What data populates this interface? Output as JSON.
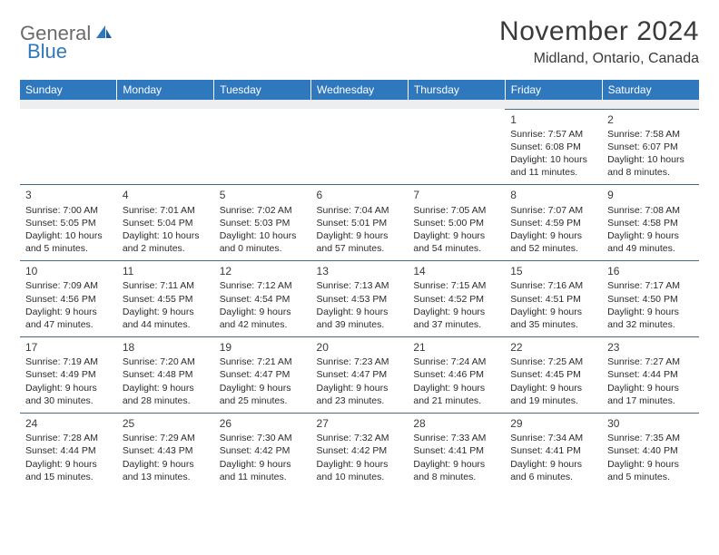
{
  "logo": {
    "text1": "General",
    "text2": "Blue"
  },
  "header": {
    "title": "November 2024",
    "location": "Midland, Ontario, Canada"
  },
  "colors": {
    "brand": "#2f78bd",
    "header_bg": "#2f78bd",
    "header_text": "#ffffff",
    "spacer_bg": "#eceef0",
    "cell_border": "#4a6a8a"
  },
  "weekdays": [
    "Sunday",
    "Monday",
    "Tuesday",
    "Wednesday",
    "Thursday",
    "Friday",
    "Saturday"
  ],
  "weeks": [
    [
      null,
      null,
      null,
      null,
      null,
      {
        "n": "1",
        "sunrise": "7:57 AM",
        "sunset": "6:08 PM",
        "daylight": "10 hours and 11 minutes."
      },
      {
        "n": "2",
        "sunrise": "7:58 AM",
        "sunset": "6:07 PM",
        "daylight": "10 hours and 8 minutes."
      }
    ],
    [
      {
        "n": "3",
        "sunrise": "7:00 AM",
        "sunset": "5:05 PM",
        "daylight": "10 hours and 5 minutes."
      },
      {
        "n": "4",
        "sunrise": "7:01 AM",
        "sunset": "5:04 PM",
        "daylight": "10 hours and 2 minutes."
      },
      {
        "n": "5",
        "sunrise": "7:02 AM",
        "sunset": "5:03 PM",
        "daylight": "10 hours and 0 minutes."
      },
      {
        "n": "6",
        "sunrise": "7:04 AM",
        "sunset": "5:01 PM",
        "daylight": "9 hours and 57 minutes."
      },
      {
        "n": "7",
        "sunrise": "7:05 AM",
        "sunset": "5:00 PM",
        "daylight": "9 hours and 54 minutes."
      },
      {
        "n": "8",
        "sunrise": "7:07 AM",
        "sunset": "4:59 PM",
        "daylight": "9 hours and 52 minutes."
      },
      {
        "n": "9",
        "sunrise": "7:08 AM",
        "sunset": "4:58 PM",
        "daylight": "9 hours and 49 minutes."
      }
    ],
    [
      {
        "n": "10",
        "sunrise": "7:09 AM",
        "sunset": "4:56 PM",
        "daylight": "9 hours and 47 minutes."
      },
      {
        "n": "11",
        "sunrise": "7:11 AM",
        "sunset": "4:55 PM",
        "daylight": "9 hours and 44 minutes."
      },
      {
        "n": "12",
        "sunrise": "7:12 AM",
        "sunset": "4:54 PM",
        "daylight": "9 hours and 42 minutes."
      },
      {
        "n": "13",
        "sunrise": "7:13 AM",
        "sunset": "4:53 PM",
        "daylight": "9 hours and 39 minutes."
      },
      {
        "n": "14",
        "sunrise": "7:15 AM",
        "sunset": "4:52 PM",
        "daylight": "9 hours and 37 minutes."
      },
      {
        "n": "15",
        "sunrise": "7:16 AM",
        "sunset": "4:51 PM",
        "daylight": "9 hours and 35 minutes."
      },
      {
        "n": "16",
        "sunrise": "7:17 AM",
        "sunset": "4:50 PM",
        "daylight": "9 hours and 32 minutes."
      }
    ],
    [
      {
        "n": "17",
        "sunrise": "7:19 AM",
        "sunset": "4:49 PM",
        "daylight": "9 hours and 30 minutes."
      },
      {
        "n": "18",
        "sunrise": "7:20 AM",
        "sunset": "4:48 PM",
        "daylight": "9 hours and 28 minutes."
      },
      {
        "n": "19",
        "sunrise": "7:21 AM",
        "sunset": "4:47 PM",
        "daylight": "9 hours and 25 minutes."
      },
      {
        "n": "20",
        "sunrise": "7:23 AM",
        "sunset": "4:47 PM",
        "daylight": "9 hours and 23 minutes."
      },
      {
        "n": "21",
        "sunrise": "7:24 AM",
        "sunset": "4:46 PM",
        "daylight": "9 hours and 21 minutes."
      },
      {
        "n": "22",
        "sunrise": "7:25 AM",
        "sunset": "4:45 PM",
        "daylight": "9 hours and 19 minutes."
      },
      {
        "n": "23",
        "sunrise": "7:27 AM",
        "sunset": "4:44 PM",
        "daylight": "9 hours and 17 minutes."
      }
    ],
    [
      {
        "n": "24",
        "sunrise": "7:28 AM",
        "sunset": "4:44 PM",
        "daylight": "9 hours and 15 minutes."
      },
      {
        "n": "25",
        "sunrise": "7:29 AM",
        "sunset": "4:43 PM",
        "daylight": "9 hours and 13 minutes."
      },
      {
        "n": "26",
        "sunrise": "7:30 AM",
        "sunset": "4:42 PM",
        "daylight": "9 hours and 11 minutes."
      },
      {
        "n": "27",
        "sunrise": "7:32 AM",
        "sunset": "4:42 PM",
        "daylight": "9 hours and 10 minutes."
      },
      {
        "n": "28",
        "sunrise": "7:33 AM",
        "sunset": "4:41 PM",
        "daylight": "9 hours and 8 minutes."
      },
      {
        "n": "29",
        "sunrise": "7:34 AM",
        "sunset": "4:41 PM",
        "daylight": "9 hours and 6 minutes."
      },
      {
        "n": "30",
        "sunrise": "7:35 AM",
        "sunset": "4:40 PM",
        "daylight": "9 hours and 5 minutes."
      }
    ]
  ],
  "labels": {
    "sunrise": "Sunrise:",
    "sunset": "Sunset:",
    "daylight": "Daylight:"
  }
}
